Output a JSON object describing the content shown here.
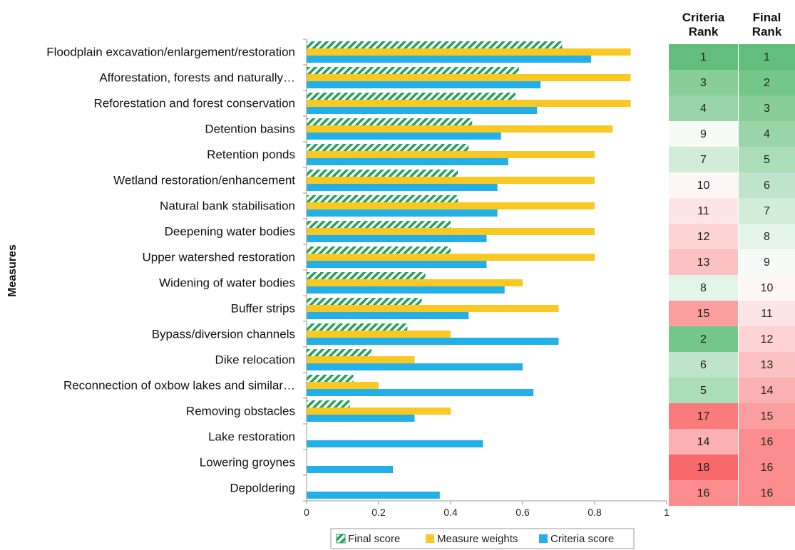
{
  "chart_data": {
    "type": "bar",
    "orientation": "horizontal",
    "ylabel": "Measures",
    "xlim": [
      0,
      1
    ],
    "xticks": [
      "0",
      "0.2",
      "0.4",
      "0.6",
      "0.8",
      "1"
    ],
    "categories": [
      "Floodplain excavation/enlargement/restoration",
      "Afforestation, forests and naturally…",
      "Reforestation and forest conservation",
      "Detention basins",
      "Retention ponds",
      "Wetland restoration/enhancement",
      "Natural bank stabilisation",
      "Deepening water bodies",
      "Upper watershed restoration",
      "Widening of water bodies",
      "Buffer strips",
      "Bypass/diversion channels",
      "Dike relocation",
      "Reconnection of oxbow lakes and similar…",
      "Removing obstacles",
      "Lake restoration",
      "Lowering groynes",
      "Depoldering"
    ],
    "series": [
      {
        "name": "Final score",
        "color": "#21a356",
        "pattern": "hatched",
        "values": [
          0.71,
          0.59,
          0.58,
          0.46,
          0.45,
          0.42,
          0.42,
          0.4,
          0.4,
          0.33,
          0.32,
          0.28,
          0.18,
          0.13,
          0.12,
          0,
          0,
          0
        ]
      },
      {
        "name": "Measure weights",
        "color": "#f9c823",
        "values": [
          0.9,
          0.9,
          0.9,
          0.85,
          0.8,
          0.8,
          0.8,
          0.8,
          0.8,
          0.6,
          0.7,
          0.4,
          0.3,
          0.2,
          0.4,
          0,
          0,
          0
        ]
      },
      {
        "name": "Criteria score",
        "color": "#23b0e8",
        "values": [
          0.79,
          0.65,
          0.64,
          0.54,
          0.56,
          0.53,
          0.53,
          0.5,
          0.5,
          0.55,
          0.45,
          0.7,
          0.6,
          0.63,
          0.3,
          0.49,
          0.24,
          0.37
        ]
      }
    ],
    "legend": {
      "position": "bottom",
      "entries": [
        "Final score",
        "Measure weights",
        "Criteria score"
      ]
    },
    "grid": false,
    "rank_table": {
      "headers": [
        [
          "Criteria",
          "Rank"
        ],
        [
          "Final",
          "Rank"
        ]
      ],
      "criteria_rank": [
        "1",
        "3",
        "4",
        "9",
        "7",
        "10",
        "11",
        "12",
        "13",
        "8",
        "15",
        "2",
        "6",
        "5",
        "17",
        "14",
        "18",
        "16"
      ],
      "final_rank": [
        "1",
        "2",
        "3",
        "4",
        "5",
        "6",
        "7",
        "8",
        "9",
        "10",
        "11",
        "12",
        "13",
        "14",
        "15",
        "16",
        "16",
        "16"
      ]
    }
  }
}
